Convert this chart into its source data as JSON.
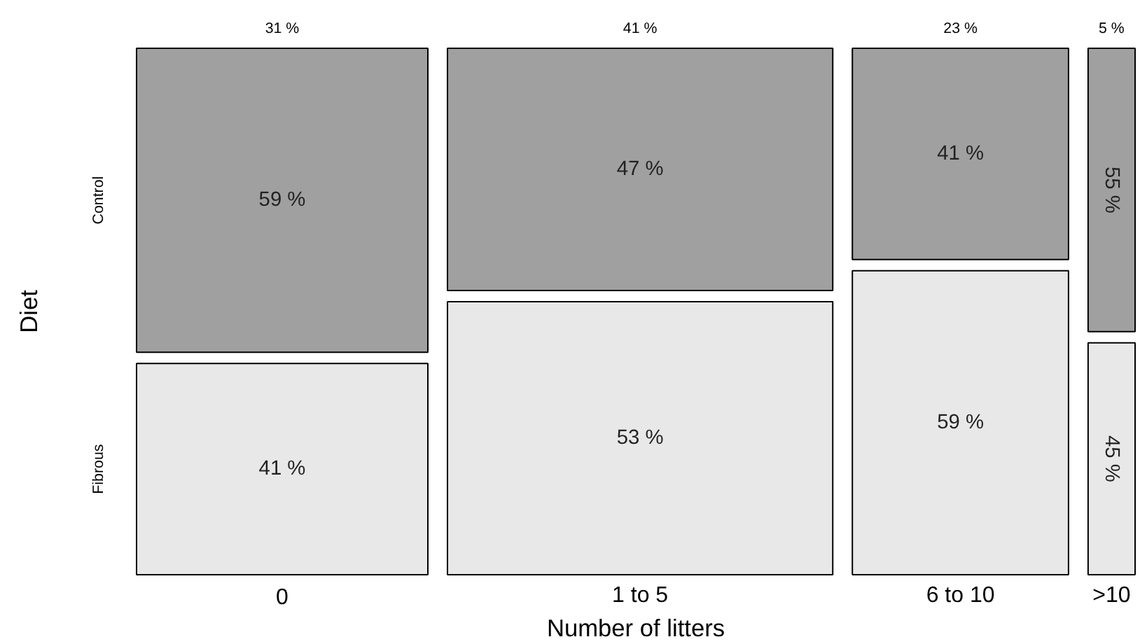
{
  "chart_data": {
    "type": "other",
    "xlabel": "Number of litters",
    "ylabel": "Diet",
    "categories": [
      "0",
      "1 to 5",
      "6 to 10",
      ">10"
    ],
    "values": [
      31,
      41,
      23,
      5
    ],
    "value_labels": [
      "31 %",
      "41 %",
      "23 %",
      "5 %"
    ],
    "series": [
      {
        "name": "Control",
        "color": "#a0a0a0",
        "values": [
          59,
          47,
          41,
          55
        ],
        "value_labels": [
          "59 %",
          "47 %",
          "41 %",
          "55 %"
        ]
      },
      {
        "name": "Fibrous",
        "color": "#e8e8e8",
        "values": [
          41,
          53,
          59,
          45
        ],
        "value_labels": [
          "41 %",
          "53 %",
          "59 %",
          "45 %"
        ]
      }
    ]
  }
}
